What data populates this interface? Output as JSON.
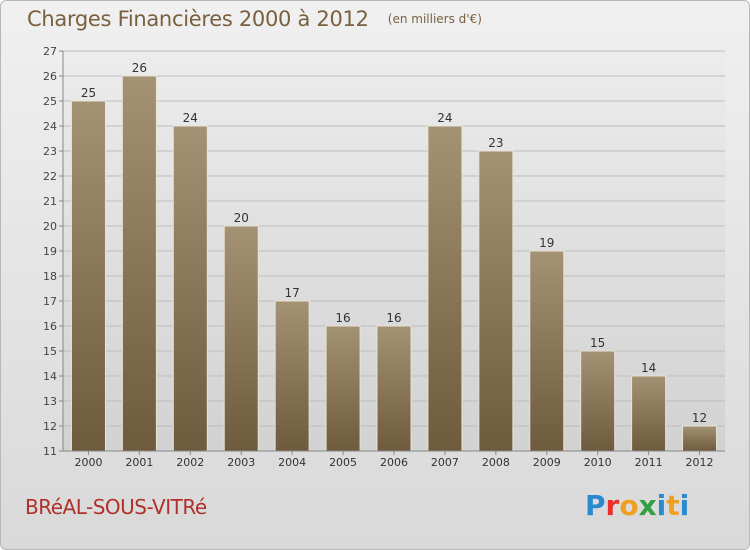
{
  "header": {
    "title": "Charges Financières 2000 à 2012",
    "subtitle": "(en milliers d'€)"
  },
  "footer": {
    "city": "BRéAL-SOUS-VITRé",
    "logo_letters": [
      "P",
      "r",
      "o",
      "x",
      "i",
      "t",
      "i"
    ]
  },
  "colors": {
    "bar_top": "#a49274",
    "bar_bottom": "#6e5a3c",
    "plot_bg_top": "#ececec",
    "plot_bg_bottom": "#d4d4d4",
    "grid": "#bcbcbc",
    "title": "#7a6040",
    "city": "#b0302a"
  },
  "chart_data": {
    "type": "bar",
    "title": "Charges Financières 2000 à 2012",
    "subtitle": "(en milliers d'€)",
    "categories": [
      "2000",
      "2001",
      "2002",
      "2003",
      "2004",
      "2005",
      "2006",
      "2007",
      "2008",
      "2009",
      "2010",
      "2011",
      "2012"
    ],
    "values": [
      25,
      26,
      24,
      20,
      17,
      16,
      16,
      24,
      23,
      19,
      15,
      14,
      12
    ],
    "ylim": [
      11,
      27
    ],
    "yticks": [
      11,
      12,
      13,
      14,
      15,
      16,
      17,
      18,
      19,
      20,
      21,
      22,
      23,
      24,
      25,
      26,
      27
    ],
    "grid": true,
    "data_labels": true
  }
}
